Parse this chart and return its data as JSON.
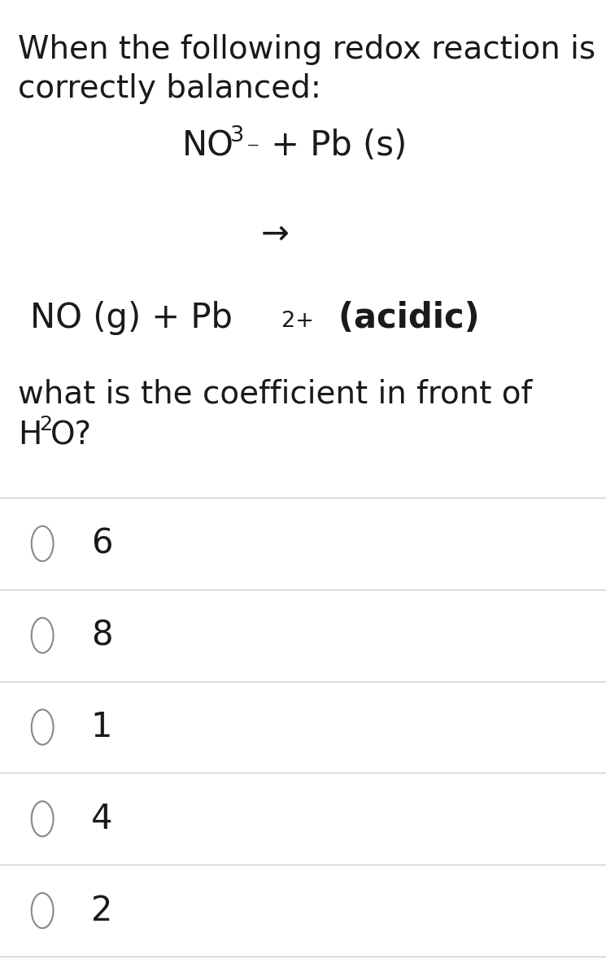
{
  "background_color": "#ffffff",
  "text_color": "#1a1a1a",
  "line1": "When the following redox reaction is",
  "line2": "correctly balanced:",
  "arrow": "→",
  "question_line1": "what is the coefficient in front of",
  "choices": [
    "6",
    "8",
    "1",
    "4",
    "2"
  ],
  "divider_color": "#cccccc",
  "circle_edge_color": "#888888",
  "font_size_main": 28,
  "font_size_choices": 30,
  "font_size_reaction": 30,
  "fig_width": 7.45,
  "fig_height": 12.0
}
